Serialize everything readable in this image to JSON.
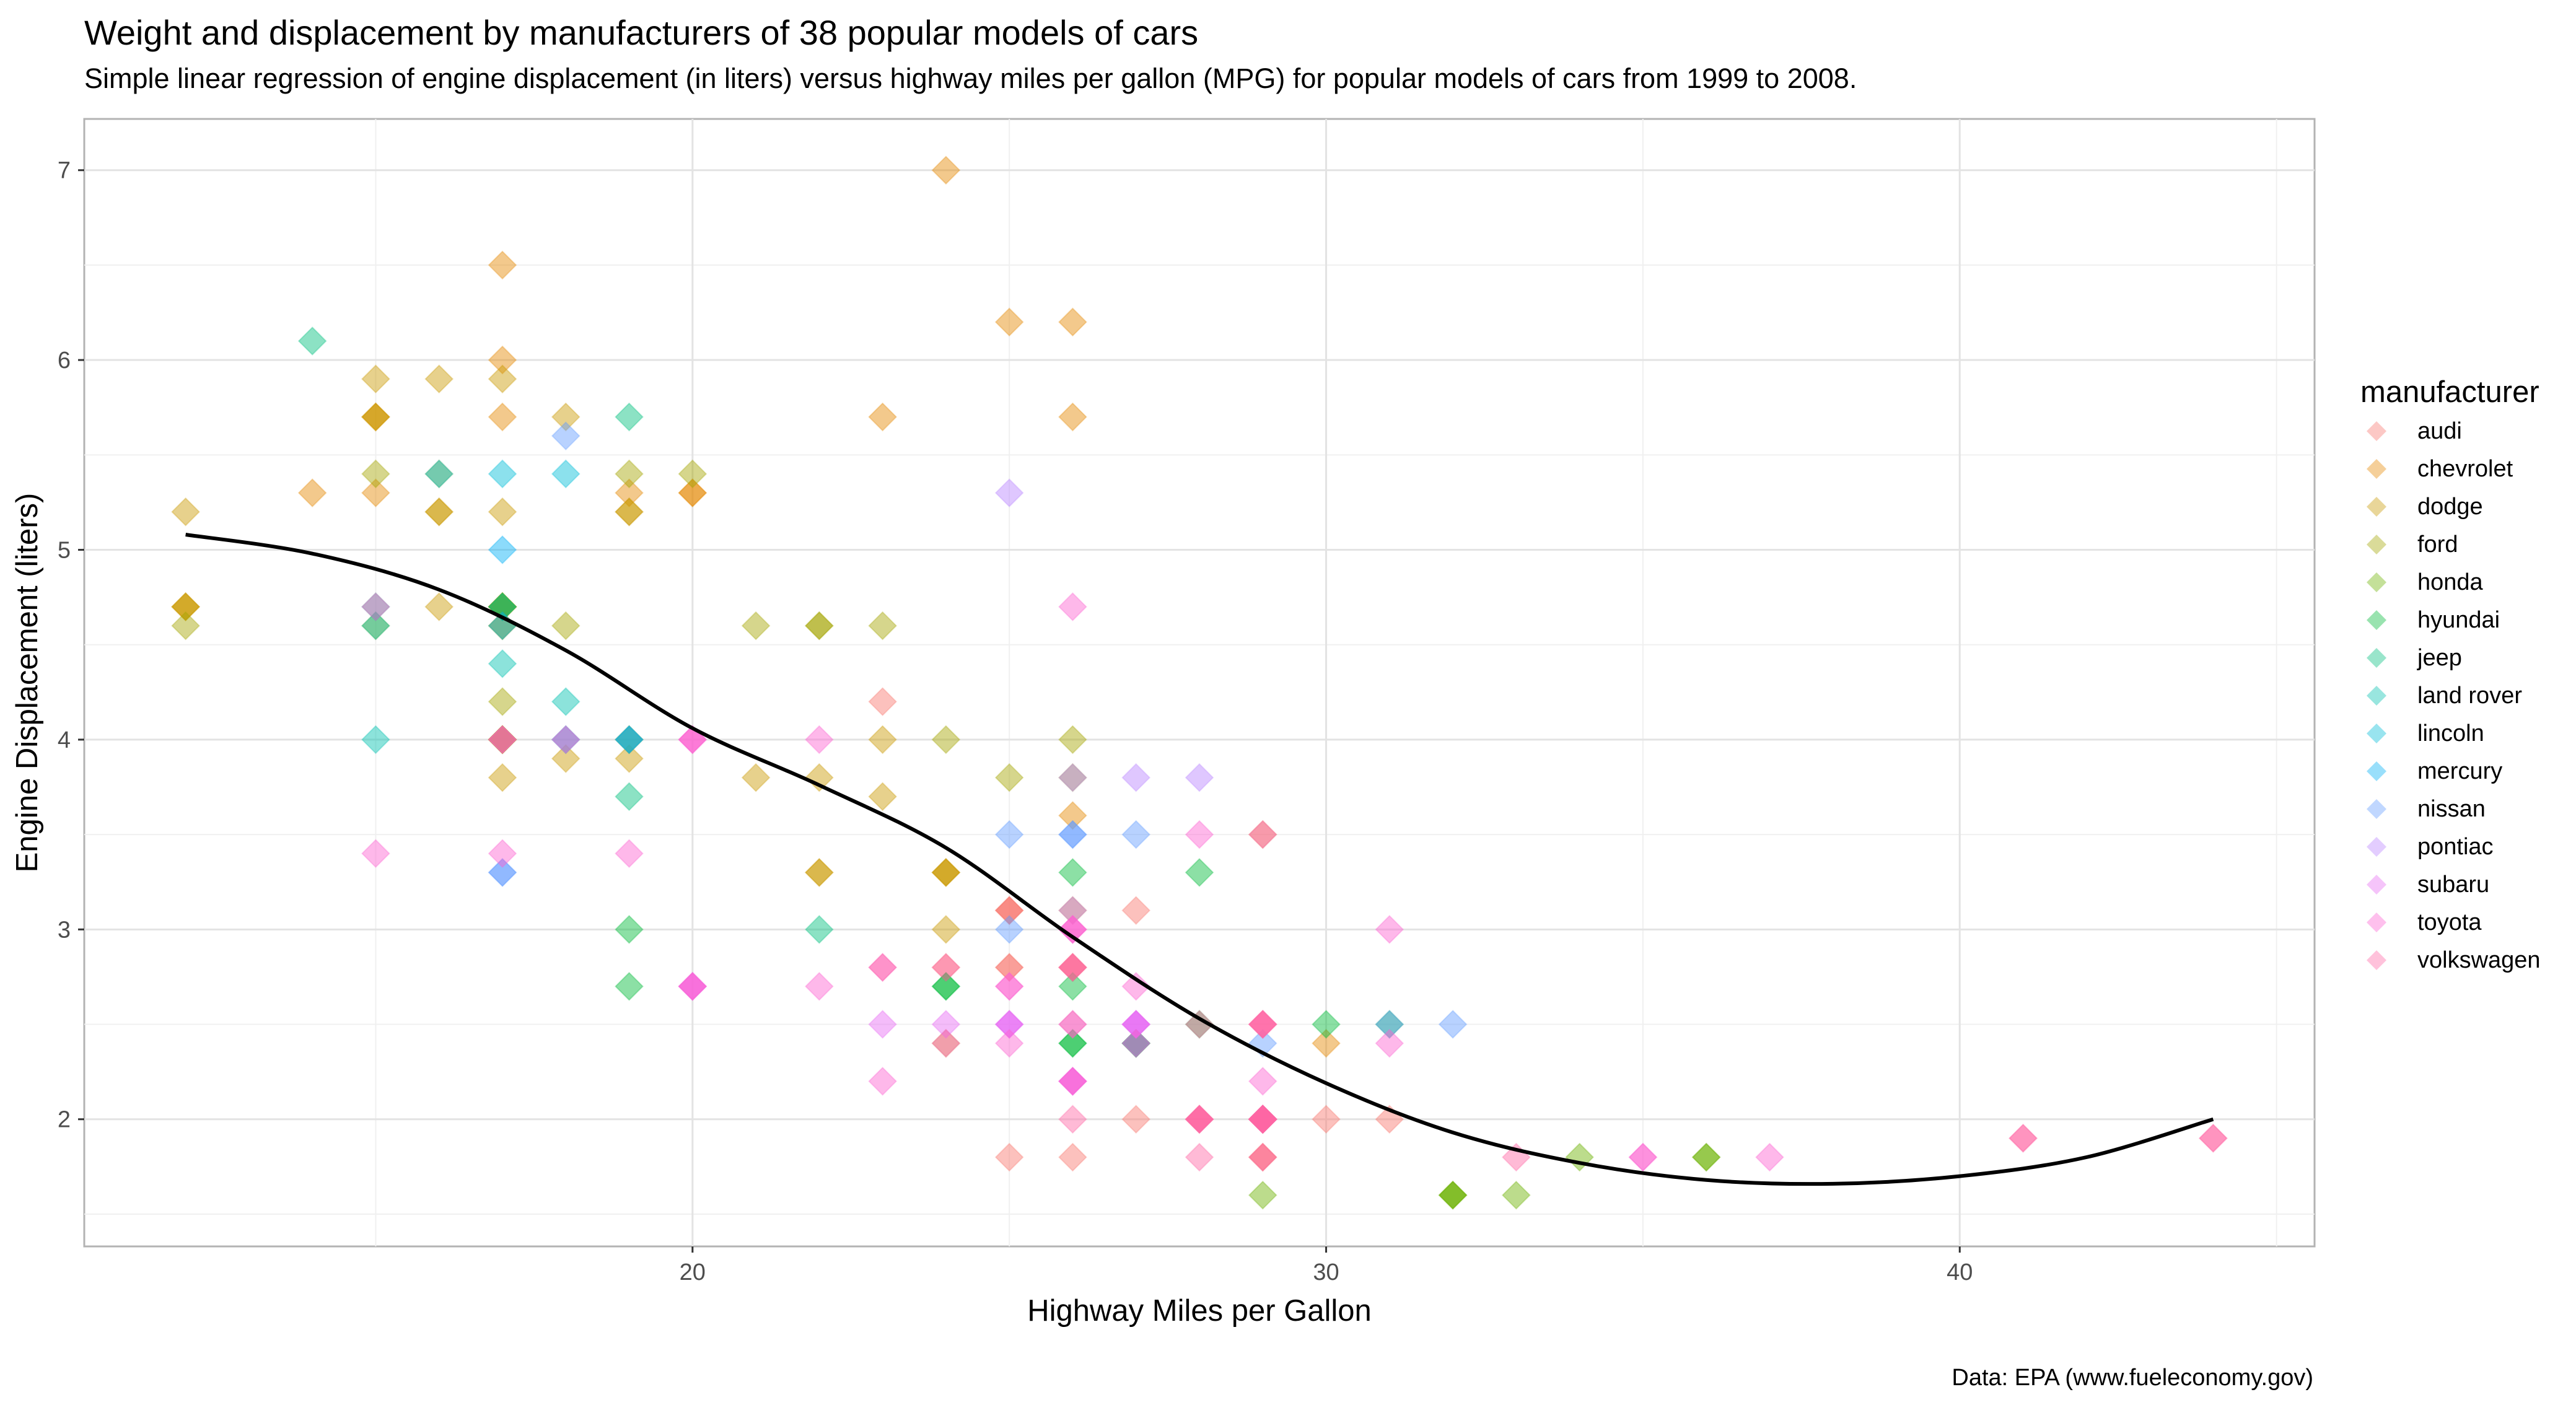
{
  "title": "Weight and displacement by manufacturers of 38 popular models of cars",
  "subtitle": "Simple linear regression of engine displacement (in liters) versus highway miles per gallon (MPG) for popular models of cars from 1999 to 2008.",
  "caption": "Data: EPA (www.fueleconomy.gov)",
  "chart_data": {
    "type": "scatter",
    "xlabel": "Highway Miles per Gallon",
    "ylabel": "Engine Displacement (liters)",
    "xlim": [
      10.4,
      45.6
    ],
    "ylim": [
      1.33,
      7.27
    ],
    "x_ticks": [
      20,
      30,
      40
    ],
    "y_ticks": [
      2,
      3,
      4,
      5,
      6,
      7
    ],
    "grid": true,
    "marker": "diamond",
    "point_opacity": 0.45,
    "legend": {
      "title": "manufacturer",
      "position": "right"
    },
    "colors": {
      "audi": "#F8766D",
      "chevrolet": "#E58700",
      "dodge": "#C99800",
      "ford": "#A3A500",
      "honda": "#6BB100",
      "hyundai": "#00BA38",
      "jeep": "#00BF7D",
      "land rover": "#00C0AF",
      "lincoln": "#00BCD8",
      "mercury": "#00B0F6",
      "nissan": "#619CFF",
      "pontiac": "#B983FF",
      "subaru": "#E76BF3",
      "toyota": "#FD61D1",
      "volkswagen": "#FF67A4"
    },
    "series": [
      {
        "name": "audi",
        "points": [
          [
            29,
            1.8
          ],
          [
            29,
            1.8
          ],
          [
            31,
            2.0
          ],
          [
            30,
            2.0
          ],
          [
            26,
            2.8
          ],
          [
            26,
            2.8
          ],
          [
            27,
            3.1
          ],
          [
            26,
            1.8
          ],
          [
            25,
            1.8
          ],
          [
            28,
            2.0
          ],
          [
            27,
            2.0
          ],
          [
            25,
            2.8
          ],
          [
            25,
            2.8
          ],
          [
            25,
            3.1
          ],
          [
            25,
            3.1
          ],
          [
            24,
            2.8
          ],
          [
            25,
            3.1
          ],
          [
            23,
            4.2
          ]
        ]
      },
      {
        "name": "chevrolet",
        "points": [
          [
            20,
            5.3
          ],
          [
            15,
            5.3
          ],
          [
            20,
            5.3
          ],
          [
            17,
            5.7
          ],
          [
            17,
            6.0
          ],
          [
            26,
            5.7
          ],
          [
            23,
            5.7
          ],
          [
            26,
            6.2
          ],
          [
            25,
            6.2
          ],
          [
            24,
            7.0
          ],
          [
            19,
            5.3
          ],
          [
            14,
            5.3
          ],
          [
            15,
            5.7
          ],
          [
            17,
            6.5
          ],
          [
            27,
            2.4
          ],
          [
            30,
            2.4
          ],
          [
            26,
            3.1
          ],
          [
            29,
            3.5
          ],
          [
            26,
            3.6
          ]
        ]
      },
      {
        "name": "dodge",
        "points": [
          [
            24,
            2.4
          ],
          [
            24,
            3.0
          ],
          [
            22,
            3.3
          ],
          [
            22,
            3.3
          ],
          [
            24,
            3.3
          ],
          [
            24,
            3.3
          ],
          [
            24,
            3.3
          ],
          [
            17,
            3.8
          ],
          [
            22,
            3.8
          ],
          [
            21,
            3.8
          ],
          [
            23,
            4.0
          ],
          [
            23,
            3.7
          ],
          [
            19,
            3.9
          ],
          [
            18,
            3.9
          ],
          [
            17,
            4.7
          ],
          [
            17,
            4.7
          ],
          [
            19,
            5.2
          ],
          [
            19,
            5.2
          ],
          [
            12,
            4.7
          ],
          [
            17,
            5.2
          ],
          [
            15,
            5.7
          ],
          [
            17,
            5.9
          ],
          [
            17,
            4.7
          ],
          [
            12,
            4.7
          ],
          [
            17,
            4.7
          ],
          [
            16,
            5.2
          ],
          [
            18,
            5.7
          ],
          [
            15,
            5.9
          ],
          [
            16,
            4.7
          ],
          [
            12,
            4.7
          ],
          [
            17,
            4.7
          ],
          [
            17,
            4.7
          ],
          [
            16,
            5.2
          ],
          [
            12,
            5.2
          ],
          [
            15,
            5.7
          ],
          [
            16,
            5.9
          ],
          [
            17,
            4.7
          ]
        ]
      },
      {
        "name": "ford",
        "points": [
          [
            17,
            4.0
          ],
          [
            17,
            4.0
          ],
          [
            19,
            4.0
          ],
          [
            17,
            4.0
          ],
          [
            18,
            4.6
          ],
          [
            17,
            4.6
          ],
          [
            19,
            5.4
          ],
          [
            19,
            4.0
          ],
          [
            17,
            4.0
          ],
          [
            17,
            4.0
          ],
          [
            17,
            4.6
          ],
          [
            26,
            3.8
          ],
          [
            25,
            3.8
          ],
          [
            26,
            4.0
          ],
          [
            24,
            4.0
          ],
          [
            21,
            4.6
          ],
          [
            22,
            4.6
          ],
          [
            23,
            4.6
          ],
          [
            22,
            4.6
          ],
          [
            20,
            5.4
          ],
          [
            17,
            4.2
          ],
          [
            12,
            4.6
          ],
          [
            15,
            4.6
          ],
          [
            15,
            5.4
          ],
          [
            16,
            5.4
          ]
        ]
      },
      {
        "name": "honda",
        "points": [
          [
            33,
            1.6
          ],
          [
            32,
            1.6
          ],
          [
            32,
            1.6
          ],
          [
            29,
            1.6
          ],
          [
            32,
            1.6
          ],
          [
            34,
            1.8
          ],
          [
            36,
            1.8
          ],
          [
            36,
            1.8
          ],
          [
            29,
            2.0
          ]
        ]
      },
      {
        "name": "hyundai",
        "points": [
          [
            26,
            2.4
          ],
          [
            27,
            2.4
          ],
          [
            30,
            2.5
          ],
          [
            31,
            2.5
          ],
          [
            26,
            2.7
          ],
          [
            26,
            3.3
          ],
          [
            28,
            3.3
          ],
          [
            26,
            2.4
          ],
          [
            27,
            2.4
          ],
          [
            28,
            2.5
          ],
          [
            24,
            2.7
          ],
          [
            24,
            2.7
          ],
          [
            19,
            2.7
          ],
          [
            19,
            3.0
          ]
        ]
      },
      {
        "name": "jeep",
        "points": [
          [
            22,
            3.0
          ],
          [
            19,
            3.7
          ],
          [
            18,
            4.0
          ],
          [
            17,
            4.7
          ],
          [
            15,
            4.7
          ],
          [
            17,
            4.7
          ],
          [
            19,
            5.7
          ],
          [
            14,
            6.1
          ]
        ]
      },
      {
        "name": "land rover",
        "points": [
          [
            15,
            4.0
          ],
          [
            18,
            4.2
          ],
          [
            17,
            4.4
          ],
          [
            15,
            4.6
          ]
        ]
      },
      {
        "name": "lincoln",
        "points": [
          [
            17,
            5.4
          ],
          [
            16,
            5.4
          ],
          [
            18,
            5.4
          ]
        ]
      },
      {
        "name": "mercury",
        "points": [
          [
            19,
            4.0
          ],
          [
            19,
            4.0
          ],
          [
            17,
            4.6
          ],
          [
            17,
            5.0
          ]
        ]
      },
      {
        "name": "nissan",
        "points": [
          [
            29,
            2.4
          ],
          [
            27,
            2.4
          ],
          [
            31,
            2.5
          ],
          [
            32,
            2.5
          ],
          [
            27,
            3.5
          ],
          [
            26,
            3.5
          ],
          [
            26,
            3.5
          ],
          [
            25,
            3.5
          ],
          [
            25,
            3.0
          ],
          [
            17,
            3.3
          ],
          [
            17,
            3.3
          ],
          [
            18,
            4.0
          ],
          [
            18,
            5.6
          ]
        ]
      },
      {
        "name": "pontiac",
        "points": [
          [
            26,
            3.1
          ],
          [
            26,
            3.8
          ],
          [
            27,
            3.8
          ],
          [
            28,
            3.8
          ],
          [
            25,
            5.3
          ]
        ]
      },
      {
        "name": "subaru",
        "points": [
          [
            25,
            2.5
          ],
          [
            24,
            2.5
          ],
          [
            27,
            2.5
          ],
          [
            25,
            2.5
          ],
          [
            26,
            2.5
          ],
          [
            23,
            2.5
          ],
          [
            26,
            2.2
          ],
          [
            26,
            2.2
          ],
          [
            27,
            2.5
          ],
          [
            27,
            2.5
          ],
          [
            25,
            2.5
          ],
          [
            27,
            2.5
          ],
          [
            20,
            2.7
          ],
          [
            20,
            2.7
          ]
        ]
      },
      {
        "name": "toyota",
        "points": [
          [
            20,
            2.7
          ],
          [
            15,
            3.4
          ],
          [
            20,
            2.7
          ],
          [
            17,
            3.4
          ],
          [
            17,
            4.0
          ],
          [
            26,
            4.7
          ],
          [
            23,
            2.2
          ],
          [
            26,
            2.2
          ],
          [
            25,
            2.4
          ],
          [
            24,
            2.4
          ],
          [
            31,
            3.0
          ],
          [
            26,
            3.0
          ],
          [
            29,
            3.5
          ],
          [
            26,
            2.2
          ],
          [
            29,
            2.2
          ],
          [
            27,
            2.4
          ],
          [
            31,
            2.4
          ],
          [
            26,
            3.0
          ],
          [
            26,
            3.0
          ],
          [
            28,
            3.5
          ],
          [
            27,
            2.7
          ],
          [
            25,
            2.7
          ],
          [
            20,
            4.0
          ],
          [
            20,
            4.0
          ],
          [
            22,
            4.0
          ],
          [
            17,
            4.0
          ],
          [
            20,
            4.0
          ],
          [
            22,
            2.7
          ],
          [
            19,
            3.4
          ],
          [
            25,
            2.7
          ],
          [
            15,
            4.7
          ],
          [
            18,
            4.0
          ],
          [
            23,
            2.8
          ],
          [
            35,
            1.8
          ],
          [
            37,
            1.8
          ],
          [
            35,
            1.8
          ],
          [
            29,
            2.0
          ]
        ]
      },
      {
        "name": "volkswagen",
        "points": [
          [
            29,
            2.0
          ],
          [
            29,
            2.0
          ],
          [
            28,
            2.0
          ],
          [
            29,
            2.0
          ],
          [
            29,
            2.0
          ],
          [
            28,
            2.0
          ],
          [
            29,
            2.0
          ],
          [
            26,
            2.8
          ],
          [
            26,
            2.8
          ],
          [
            29,
            2.0
          ],
          [
            28,
            2.0
          ],
          [
            41,
            1.9
          ],
          [
            29,
            2.0
          ],
          [
            29,
            2.0
          ],
          [
            33,
            1.8
          ],
          [
            28,
            2.0
          ],
          [
            44,
            1.9
          ],
          [
            29,
            2.0
          ],
          [
            26,
            2.5
          ],
          [
            29,
            2.5
          ],
          [
            29,
            2.5
          ],
          [
            28,
            2.5
          ],
          [
            29,
            2.5
          ],
          [
            29,
            2.5
          ],
          [
            23,
            2.8
          ],
          [
            24,
            2.8
          ],
          [
            44,
            1.9
          ],
          [
            41,
            1.9
          ],
          [
            29,
            2.0
          ],
          [
            26,
            2.0
          ],
          [
            28,
            1.8
          ],
          [
            29,
            1.8
          ],
          [
            29,
            2.0
          ],
          [
            29,
            2.0
          ],
          [
            29,
            2.0
          ]
        ]
      }
    ],
    "fit_line": {
      "x": [
        12,
        14,
        16,
        18,
        20,
        22,
        24,
        26,
        28,
        30,
        32,
        34,
        36,
        38,
        40,
        42,
        44
      ],
      "y": [
        5.08,
        4.98,
        4.79,
        4.47,
        4.06,
        3.76,
        3.43,
        2.96,
        2.53,
        2.19,
        1.93,
        1.77,
        1.68,
        1.66,
        1.7,
        1.8,
        2.0
      ]
    }
  },
  "legend_items": [
    "audi",
    "chevrolet",
    "dodge",
    "ford",
    "honda",
    "hyundai",
    "jeep",
    "land rover",
    "lincoln",
    "mercury",
    "nissan",
    "pontiac",
    "subaru",
    "toyota",
    "volkswagen"
  ]
}
